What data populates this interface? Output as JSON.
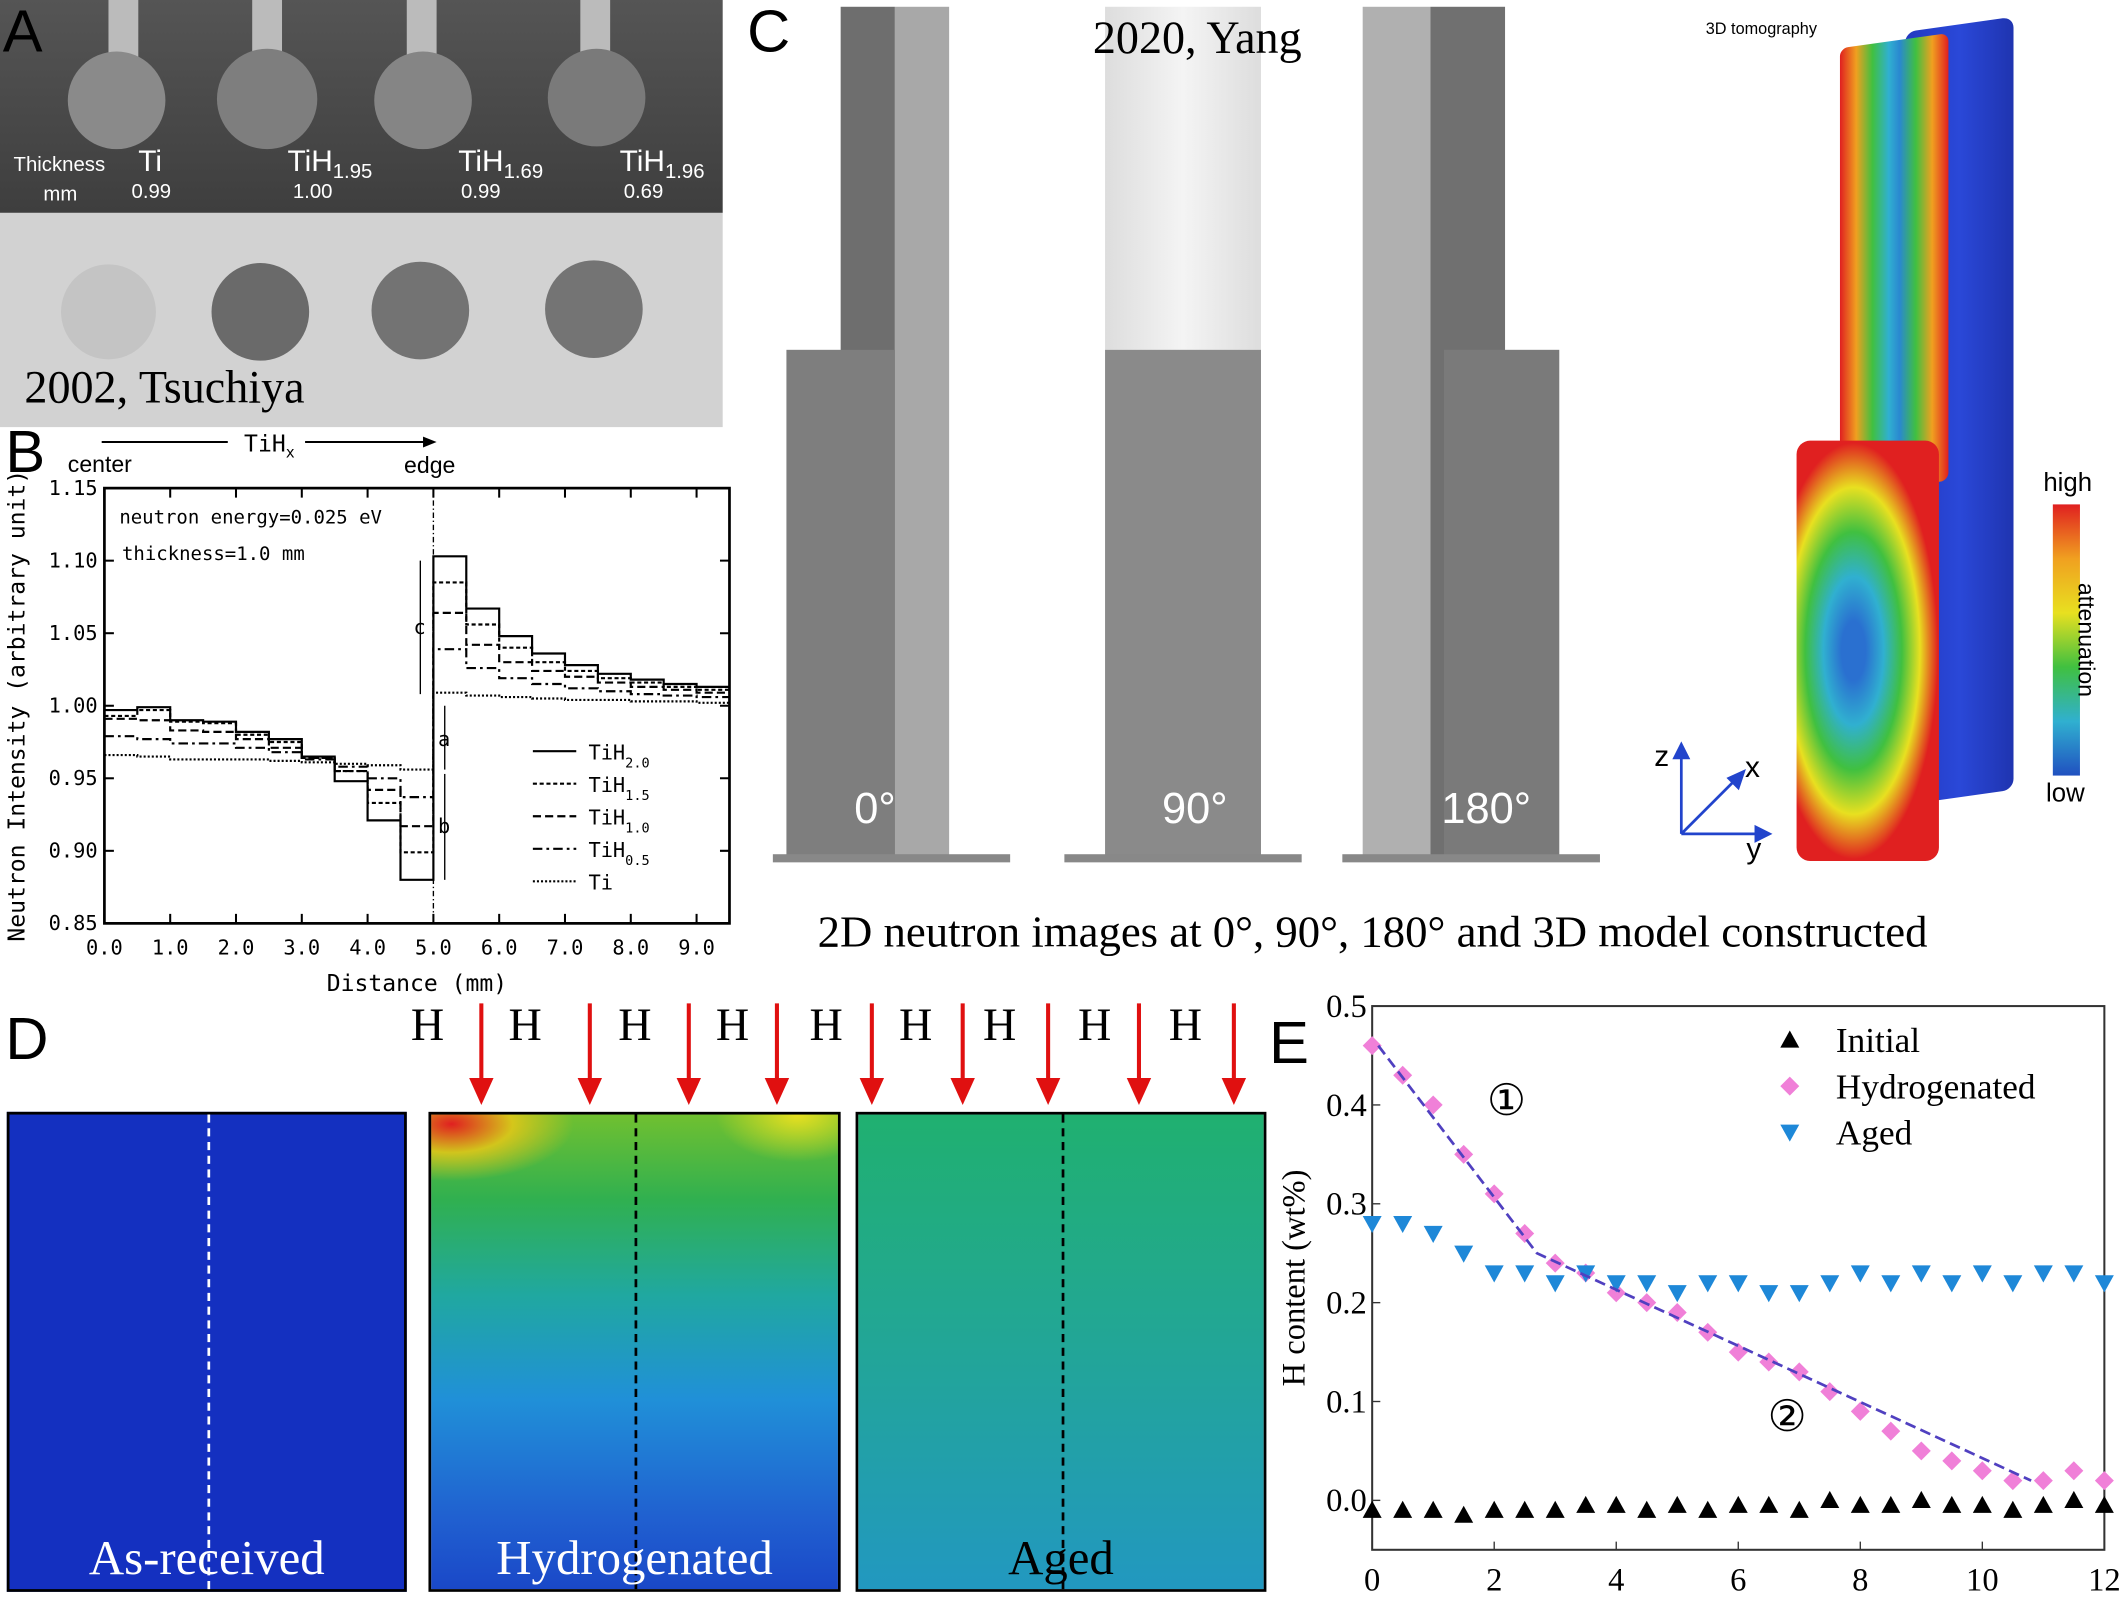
{
  "panels": {
    "A": {
      "label": "A",
      "thickness_label": "Thickness",
      "thickness_unit": "mm",
      "samples": [
        {
          "name": "Ti",
          "sub": "",
          "thickness": "0.99"
        },
        {
          "name": "TiH",
          "sub": "1.95",
          "thickness": "1.00"
        },
        {
          "name": "TiH",
          "sub": "1.69",
          "thickness": "0.99"
        },
        {
          "name": "TiH",
          "sub": "1.96",
          "thickness": "0.69"
        }
      ],
      "citation": "2002, Tsuchiya"
    },
    "B": {
      "label": "B",
      "top_center": "center",
      "top_formula": "TiH",
      "top_formula_sub": "x",
      "top_edge": "edge",
      "annotation_energy": "neutron energy=0.025 eV",
      "annotation_thickness": "thickness=1.0 mm",
      "marker_a": "a",
      "marker_b": "b",
      "marker_c": "c"
    },
    "C": {
      "label": "C",
      "citation": "2020, Yang",
      "angles": [
        "0°",
        "90°",
        "180°"
      ],
      "tomography_title": "3D tomography",
      "colorbar_high": "high",
      "colorbar_low": "low",
      "colorbar_label": "attenuation",
      "axis_z": "z",
      "axis_x": "x",
      "axis_y": "y",
      "caption": "2D neutron images at 0°, 90°, 180° and 3D model constructed",
      "colorbar_colors": [
        "#e02020",
        "#f0a020",
        "#e8e020",
        "#40c040",
        "#30b0d0",
        "#2050c0"
      ]
    },
    "D": {
      "label": "D",
      "h_label": "H",
      "h_count": 9,
      "arrow_color": "#e01010",
      "images": [
        {
          "label": "As-received",
          "divider": "white"
        },
        {
          "label": "Hydrogenated",
          "divider": "black"
        },
        {
          "label": "Aged",
          "divider": "black"
        }
      ]
    },
    "E": {
      "label": "E",
      "annotation_1": "①",
      "annotation_2": "②"
    }
  },
  "chart_data": [
    {
      "type": "line",
      "step": true,
      "xlabel": "Distance (mm)",
      "ylabel": "Neutron Intensity (arbitrary unit)",
      "xlim": [
        0,
        9.5
      ],
      "ylim": [
        0.85,
        1.15
      ],
      "xticks": [
        "0.0",
        "1.0",
        "2.0",
        "3.0",
        "4.0",
        "5.0",
        "6.0",
        "7.0",
        "8.0",
        "9.0"
      ],
      "yticks": [
        "0.85",
        "0.90",
        "0.95",
        "1.00",
        "1.05",
        "1.10",
        "1.15"
      ],
      "bin_edges": [
        0,
        0.5,
        1,
        1.5,
        2,
        2.5,
        3,
        3.5,
        4,
        4.5,
        5,
        5.5,
        6,
        6.5,
        7,
        7.5,
        8,
        8.5,
        9,
        9.5
      ],
      "legend_position": "right",
      "series": [
        {
          "name": "TiH",
          "sub": "2.0",
          "dash": "solid",
          "values": [
            0.997,
            0.999,
            0.99,
            0.989,
            0.982,
            0.977,
            0.965,
            0.948,
            0.921,
            0.88,
            1.103,
            1.067,
            1.048,
            1.036,
            1.028,
            1.022,
            1.018,
            1.015,
            1.013
          ]
        },
        {
          "name": "TiH",
          "sub": "1.5",
          "dash": "dotted-short",
          "values": [
            0.993,
            0.997,
            0.989,
            0.988,
            0.98,
            0.975,
            0.964,
            0.955,
            0.933,
            0.899,
            1.085,
            1.056,
            1.04,
            1.03,
            1.024,
            1.019,
            1.016,
            1.013,
            1.011
          ]
        },
        {
          "name": "TiH",
          "sub": "1.0",
          "dash": "dashed",
          "values": [
            0.991,
            0.99,
            0.983,
            0.982,
            0.977,
            0.971,
            0.964,
            0.955,
            0.942,
            0.917,
            1.064,
            1.042,
            1.03,
            1.024,
            1.02,
            1.016,
            1.013,
            1.011,
            1.009
          ]
        },
        {
          "name": "TiH",
          "sub": "0.5",
          "dash": "dash-dot",
          "values": [
            0.979,
            0.977,
            0.974,
            0.974,
            0.971,
            0.968,
            0.963,
            0.958,
            0.95,
            0.937,
            1.039,
            1.026,
            1.019,
            1.015,
            1.012,
            1.01,
            1.008,
            1.007,
            1.006
          ]
        },
        {
          "name": "Ti",
          "sub": "",
          "dash": "dotted",
          "values": [
            0.966,
            0.965,
            0.963,
            0.963,
            0.963,
            0.962,
            0.961,
            0.96,
            0.959,
            0.956,
            1.009,
            1.007,
            1.006,
            1.005,
            1.004,
            1.004,
            1.003,
            1.003,
            1.002
          ]
        }
      ],
      "vertical_line_x": 5.0
    },
    {
      "type": "scatter",
      "xlabel": "",
      "ylabel": "H content (wt%)",
      "xlim": [
        0,
        12
      ],
      "ylim": [
        -0.05,
        0.5
      ],
      "xticks": [
        "0",
        "2",
        "4",
        "6",
        "8",
        "10",
        "12"
      ],
      "yticks": [
        "0.0",
        "0.1",
        "0.2",
        "0.3",
        "0.4",
        "0.5"
      ],
      "legend_position": "top-right",
      "x": [
        0,
        0.5,
        1,
        1.5,
        2,
        2.5,
        3,
        3.5,
        4,
        4.5,
        5,
        5.5,
        6,
        6.5,
        7,
        7.5,
        8,
        8.5,
        9,
        9.5,
        10,
        10.5,
        11,
        11.5,
        12
      ],
      "series": [
        {
          "name": "Initial",
          "marker": "triangle-up",
          "color": "#000000",
          "values": [
            -0.01,
            -0.01,
            -0.01,
            -0.015,
            -0.01,
            -0.01,
            -0.01,
            -0.005,
            -0.005,
            -0.01,
            -0.005,
            -0.01,
            -0.005,
            -0.005,
            -0.01,
            0.0,
            -0.005,
            -0.005,
            0.0,
            -0.005,
            -0.005,
            -0.01,
            -0.005,
            0.0,
            -0.005
          ]
        },
        {
          "name": "Hydrogenated",
          "marker": "diamond",
          "color": "#f080d8",
          "values": [
            0.46,
            0.43,
            0.4,
            0.35,
            0.31,
            0.27,
            0.24,
            0.23,
            0.21,
            0.2,
            0.19,
            0.17,
            0.15,
            0.14,
            0.13,
            0.11,
            0.09,
            0.07,
            0.05,
            0.04,
            0.03,
            0.02,
            0.02,
            0.03,
            0.02
          ]
        },
        {
          "name": "Aged",
          "marker": "triangle-down",
          "color": "#1e88d8",
          "values": [
            0.28,
            0.28,
            0.27,
            0.25,
            0.23,
            0.23,
            0.22,
            0.23,
            0.22,
            0.22,
            0.21,
            0.22,
            0.22,
            0.21,
            0.21,
            0.22,
            0.23,
            0.22,
            0.23,
            0.22,
            0.23,
            0.22,
            0.23,
            0.23,
            0.22
          ]
        }
      ],
      "fit_line": {
        "color": "#5040c0",
        "x": [
          0.1,
          2.7,
          10.8
        ],
        "y": [
          0.46,
          0.25,
          0.02
        ]
      }
    }
  ]
}
